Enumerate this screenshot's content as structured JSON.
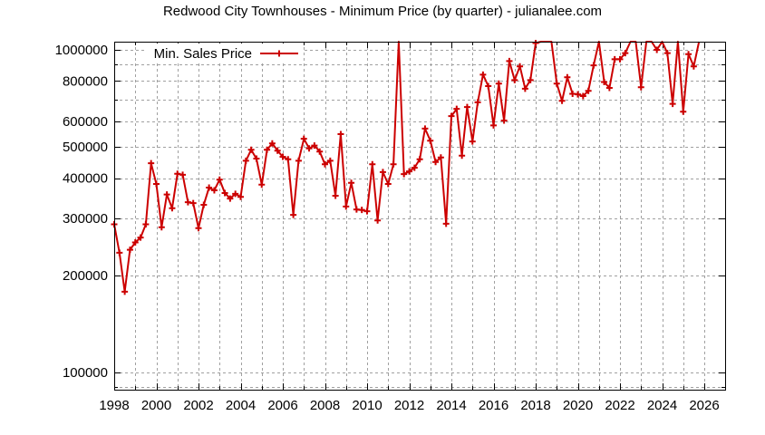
{
  "title": "Redwood City Townhouses - Minimum Price (by quarter) - julianalee.com",
  "colors": {
    "series": "#cc0000",
    "grid": "#a0a0a0",
    "axis": "#000000",
    "background": "#ffffff"
  },
  "legend": {
    "label": "Min. Sales Price",
    "position": "top-left"
  },
  "chart_data": {
    "type": "line",
    "title": "Redwood City Townhouses - Minimum Price (by quarter) - julianalee.com",
    "xlabel": "",
    "ylabel": "",
    "yscale": "log",
    "xlim": [
      1998,
      2027
    ],
    "ylim": [
      90000,
      1060000
    ],
    "grid": true,
    "legend_position": "top-left",
    "x_ticks": [
      "1998",
      "2000",
      "2002",
      "2004",
      "2006",
      "2008",
      "2010",
      "2012",
      "2014",
      "2016",
      "2018",
      "2020",
      "2022",
      "2024",
      "2026"
    ],
    "y_ticks": [
      "100000",
      "200000",
      "300000",
      "400000",
      "500000",
      "600000",
      "800000",
      "1000000"
    ],
    "series": [
      {
        "name": "Min. Sales Price",
        "marker": "+",
        "x": [
          1998.0,
          1998.25,
          1998.5,
          1998.75,
          1999.0,
          1999.25,
          1999.5,
          1999.75,
          2000.0,
          2000.25,
          2000.5,
          2000.75,
          2001.0,
          2001.25,
          2001.5,
          2001.75,
          2002.0,
          2002.25,
          2002.5,
          2002.75,
          2003.0,
          2003.25,
          2003.5,
          2003.75,
          2004.0,
          2004.25,
          2004.5,
          2004.75,
          2005.0,
          2005.25,
          2005.5,
          2005.75,
          2006.0,
          2006.25,
          2006.5,
          2006.75,
          2007.0,
          2007.25,
          2007.5,
          2007.75,
          2008.0,
          2008.25,
          2008.5,
          2008.75,
          2009.0,
          2009.25,
          2009.5,
          2009.75,
          2010.0,
          2010.25,
          2010.5,
          2010.75,
          2011.0,
          2011.25,
          2011.5,
          2011.75,
          2012.0,
          2012.25,
          2012.5,
          2012.75,
          2013.0,
          2013.25,
          2013.5,
          2013.75,
          2014.0,
          2014.25,
          2014.5,
          2014.75,
          2015.0,
          2015.25,
          2015.5,
          2015.75,
          2016.0,
          2016.25,
          2016.5,
          2016.75,
          2017.0,
          2017.25,
          2017.5,
          2017.75,
          2018.0,
          2018.25,
          2018.5,
          2018.75,
          2019.0,
          2019.25,
          2019.5,
          2019.75,
          2020.0,
          2020.25,
          2020.5,
          2020.75,
          2021.0,
          2021.25,
          2021.5,
          2021.75,
          2022.0,
          2022.25,
          2022.5,
          2022.75,
          2023.0,
          2023.25,
          2023.5,
          2023.75,
          2024.0,
          2024.25,
          2024.5,
          2024.75,
          2025.0,
          2025.25,
          2025.5,
          2025.75
        ],
        "values": [
          288000,
          235000,
          178000,
          240000,
          253000,
          262000,
          288000,
          445000,
          384000,
          282000,
          356000,
          323000,
          413000,
          410000,
          337000,
          335000,
          280000,
          331000,
          374000,
          367000,
          396000,
          360000,
          346000,
          358000,
          350000,
          453000,
          490000,
          460000,
          382000,
          490000,
          513000,
          487000,
          466000,
          458000,
          308000,
          453000,
          530000,
          495000,
          505000,
          484000,
          442000,
          453000,
          353000,
          548000,
          327000,
          387000,
          320000,
          319000,
          316000,
          442000,
          296000,
          418000,
          384000,
          442000,
          1100000,
          412000,
          420000,
          431000,
          458000,
          570000,
          523000,
          449000,
          464000,
          289000,
          623000,
          656000,
          470000,
          665000,
          520000,
          688000,
          838000,
          772000,
          583000,
          786000,
          604000,
          923000,
          806000,
          889000,
          758000,
          806000,
          1050000,
          1100000,
          1070000,
          1100000,
          786000,
          695000,
          822000,
          731000,
          728000,
          719000,
          746000,
          895000,
          1100000,
          795000,
          762000,
          935000,
          935000,
          977000,
          1100000,
          1100000,
          766000,
          1100000,
          1100000,
          1000000,
          1100000,
          977000,
          680000,
          1100000,
          643000,
          970000,
          889000,
          1100000
        ]
      }
    ]
  }
}
